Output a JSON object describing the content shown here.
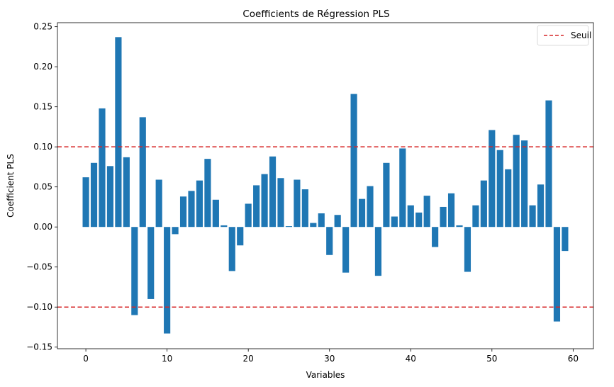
{
  "chart_data": {
    "type": "bar",
    "title": "Coefficients de Régression PLS",
    "xlabel": "Variables",
    "ylabel": "Coefficient PLS",
    "xlim": [
      -3.5,
      62.5
    ],
    "ylim": [
      -0.152,
      0.255
    ],
    "xticks": [
      0,
      10,
      20,
      30,
      40,
      50,
      60
    ],
    "yticks": [
      -0.15,
      -0.1,
      -0.05,
      0.0,
      0.05,
      0.1,
      0.15,
      0.2,
      0.25
    ],
    "ytick_labels": [
      "−0.15",
      "−0.10",
      "−0.05",
      "0.00",
      "0.05",
      "0.10",
      "0.15",
      "0.20",
      "0.25"
    ],
    "bar_color": "#1f77b4",
    "bar_width": 0.8,
    "x": [
      0,
      1,
      2,
      3,
      4,
      5,
      6,
      7,
      8,
      9,
      10,
      11,
      12,
      13,
      14,
      15,
      16,
      17,
      18,
      19,
      20,
      21,
      22,
      23,
      24,
      25,
      26,
      27,
      28,
      29,
      30,
      31,
      32,
      33,
      34,
      35,
      36,
      37,
      38,
      39,
      40,
      41,
      42,
      43,
      44,
      45,
      46,
      47,
      48,
      49,
      50,
      51,
      52,
      53,
      54,
      55,
      56,
      57,
      58,
      59
    ],
    "values": [
      0.062,
      0.08,
      0.148,
      0.076,
      0.237,
      0.087,
      -0.11,
      0.137,
      -0.09,
      0.059,
      -0.133,
      -0.009,
      0.038,
      0.045,
      0.058,
      0.085,
      0.034,
      0.002,
      -0.055,
      -0.023,
      0.029,
      0.052,
      0.066,
      0.088,
      0.061,
      0.001,
      0.059,
      0.047,
      0.005,
      0.017,
      -0.035,
      0.015,
      -0.057,
      0.166,
      0.035,
      0.051,
      -0.061,
      0.08,
      0.013,
      0.098,
      0.027,
      0.018,
      0.039,
      -0.025,
      0.025,
      0.042,
      0.002,
      -0.056,
      0.027,
      0.058,
      0.121,
      0.096,
      0.072,
      0.115,
      0.108,
      0.027,
      0.053,
      0.158,
      -0.118,
      -0.03
    ],
    "thresholds": [
      {
        "y": 0.1,
        "color": "#d62728",
        "style": "dashed"
      },
      {
        "y": -0.1,
        "color": "#d62728",
        "style": "dashed"
      }
    ],
    "legend": {
      "placement": "top-right",
      "entries": [
        {
          "label": "Seuil",
          "color": "#d62728",
          "style": "dashed"
        }
      ]
    },
    "grid": false
  }
}
